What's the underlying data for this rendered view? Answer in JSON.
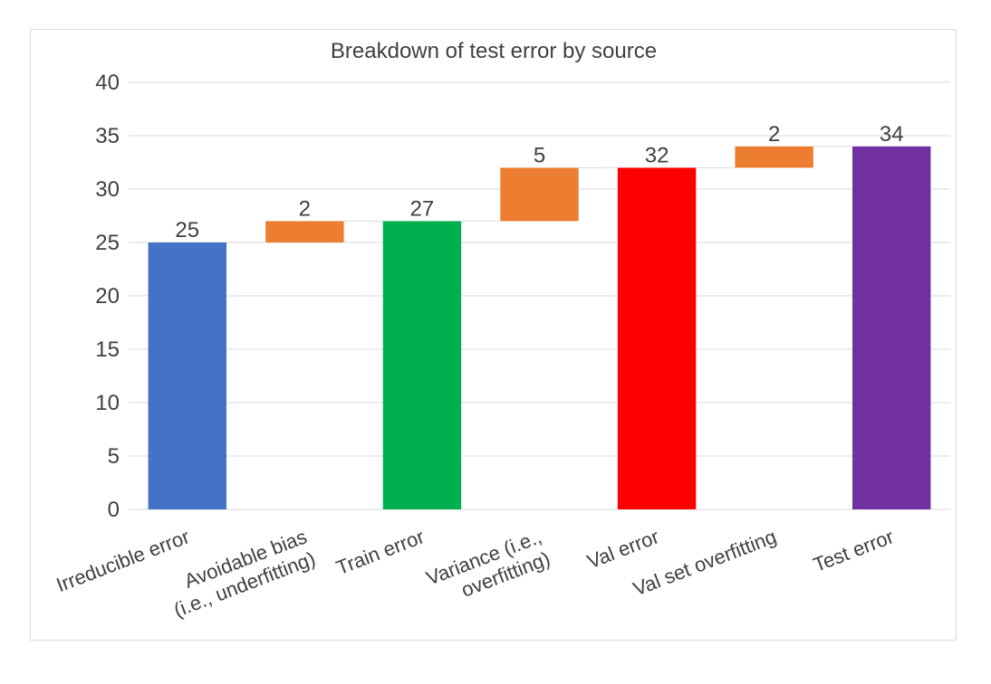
{
  "chart_data": {
    "type": "waterfall",
    "title": "Breakdown of test error by source",
    "xlabel": "",
    "ylabel": "",
    "ylim": [
      0,
      40
    ],
    "yticks": [
      "0",
      "5",
      "10",
      "15",
      "20",
      "25",
      "30",
      "35",
      "40"
    ],
    "grid": true,
    "legend": "none",
    "categories": [
      "Irreducible error",
      "Avoidable bias (i.e., underfitting)",
      "Train error",
      "Variance (i.e., overfitting)",
      "Val error",
      "Val set overfitting",
      "Test error"
    ],
    "category_label_lines": [
      [
        "Irreducible error"
      ],
      [
        "Avoidable bias",
        "(i.e., underfitting)"
      ],
      [
        "Train error"
      ],
      [
        "Variance (i.e.,",
        "overfitting)"
      ],
      [
        "Val error"
      ],
      [
        "Val set overfitting"
      ],
      [
        "Test error"
      ]
    ],
    "bars": [
      {
        "kind": "total",
        "start": 0,
        "end": 25,
        "label": "25",
        "color": "#4472c4"
      },
      {
        "kind": "delta",
        "start": 25,
        "end": 27,
        "label": "2",
        "color": "#ed7d31"
      },
      {
        "kind": "total",
        "start": 0,
        "end": 27,
        "label": "27",
        "color": "#00b050"
      },
      {
        "kind": "delta",
        "start": 27,
        "end": 32,
        "label": "5",
        "color": "#ed7d31"
      },
      {
        "kind": "total",
        "start": 0,
        "end": 32,
        "label": "32",
        "color": "#ff0000"
      },
      {
        "kind": "delta",
        "start": 32,
        "end": 34,
        "label": "2",
        "color": "#ed7d31"
      },
      {
        "kind": "total",
        "start": 0,
        "end": 34,
        "label": "34",
        "color": "#7030a0"
      }
    ],
    "gridline_color": "#d9d9d9",
    "text_color": "#404040"
  }
}
